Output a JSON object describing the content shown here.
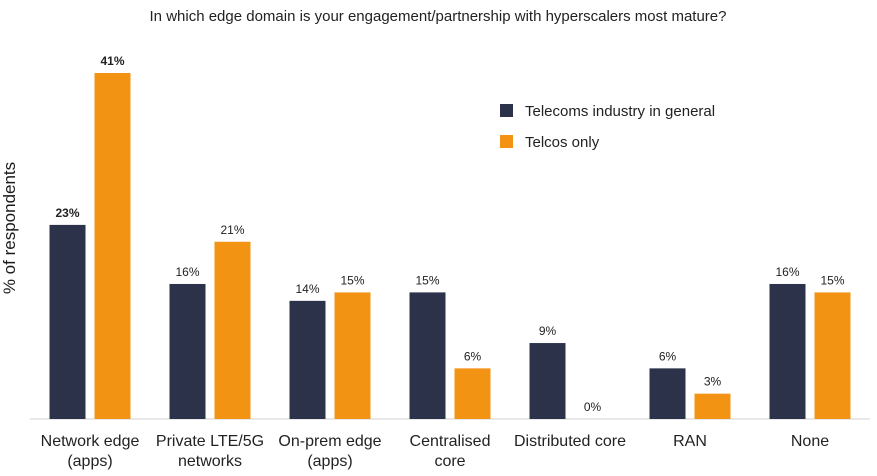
{
  "chart_data": {
    "type": "bar",
    "title": "In which edge domain is your engagement/partnership with hyperscalers most mature?",
    "ylabel": "% of respondents",
    "xlabel": "",
    "ylim": [
      0,
      41
    ],
    "grid": false,
    "legend_position": "top-right",
    "categories": [
      [
        "Network edge",
        "(apps)"
      ],
      [
        "Private LTE/5G",
        "networks"
      ],
      [
        "On-prem edge",
        "(apps)"
      ],
      [
        "Centralised",
        "core"
      ],
      [
        "Distributed core"
      ],
      [
        "RAN"
      ],
      [
        "None"
      ]
    ],
    "series": [
      {
        "name": "Telecoms industry in general",
        "color": "#2b3249",
        "values": [
          23,
          16,
          14,
          15,
          9,
          6,
          16
        ],
        "labels": [
          "23%",
          "16%",
          "14%",
          "15%",
          "9%",
          "6%",
          "16%"
        ]
      },
      {
        "name": "Telcos only",
        "color": "#f39314",
        "values": [
          41,
          21,
          15,
          6,
          0,
          3,
          15
        ],
        "labels": [
          "41%",
          "21%",
          "15%",
          "6%",
          "0%",
          "3%",
          "15%"
        ]
      }
    ],
    "bold_category_index": 0
  }
}
